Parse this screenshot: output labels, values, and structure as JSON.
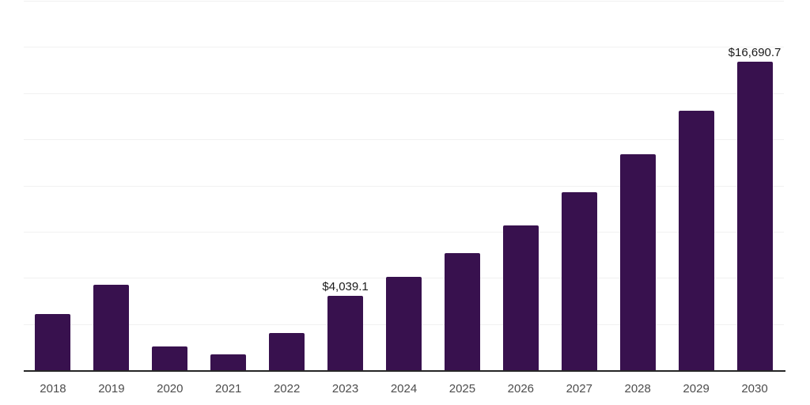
{
  "chart_data": {
    "type": "bar",
    "title": "",
    "xlabel": "",
    "ylabel": "",
    "categories": [
      "2018",
      "2019",
      "2020",
      "2021",
      "2022",
      "2023",
      "2024",
      "2025",
      "2026",
      "2027",
      "2028",
      "2029",
      "2030"
    ],
    "values": [
      3040,
      4620,
      1285,
      855,
      2010,
      4039.1,
      5050,
      6335,
      7850,
      9630,
      11685,
      14040,
      16690.7
    ],
    "data_labels": {
      "2023": "$4,039.1",
      "2030": "$16,690.7"
    },
    "ylim": [
      0,
      20000
    ],
    "gridline_interval": 2500,
    "grid": "horizontal",
    "legend": "none",
    "colors": {
      "bar": "#38114E",
      "gridline": "#F1F1F1",
      "axis_line": "#262626",
      "x_tick_label": "#4D4D4D",
      "value_label": "#1A1A1A",
      "background": "#FFFFFF"
    }
  }
}
